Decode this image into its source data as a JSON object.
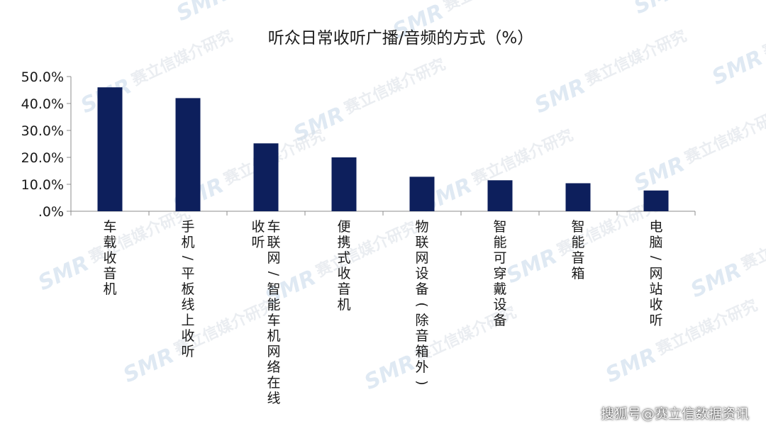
{
  "chart_data": {
    "type": "bar",
    "title": "听众日常收听广播/音频的方式（%）",
    "categories": [
      [
        "车载收音机"
      ],
      [
        "手机/平板线上收听"
      ],
      [
        "车联网/智能车机网络在线",
        "收听"
      ],
      [
        "便携式收音机"
      ],
      [
        "物联网设备(除音箱外)"
      ],
      [
        "智能可穿戴设备"
      ],
      [
        "智能音箱"
      ],
      [
        "电脑/网站收听"
      ]
    ],
    "values": [
      46.0,
      42.0,
      25.2,
      20.0,
      12.8,
      11.5,
      10.4,
      7.7
    ],
    "ylim": [
      0,
      50
    ],
    "yticks": [
      ".0%",
      "10.0%",
      "20.0%",
      "30.0%",
      "40.0%",
      "50.0%"
    ],
    "ytick_values": [
      0,
      10,
      20,
      30,
      40,
      50
    ],
    "bar_color": "#0d1f5c",
    "grid": false
  },
  "watermark": {
    "logo": "SMR",
    "text": "赛立信媒介研究"
  },
  "footer": {
    "source": "搜狐号@赛立信数据资讯"
  }
}
